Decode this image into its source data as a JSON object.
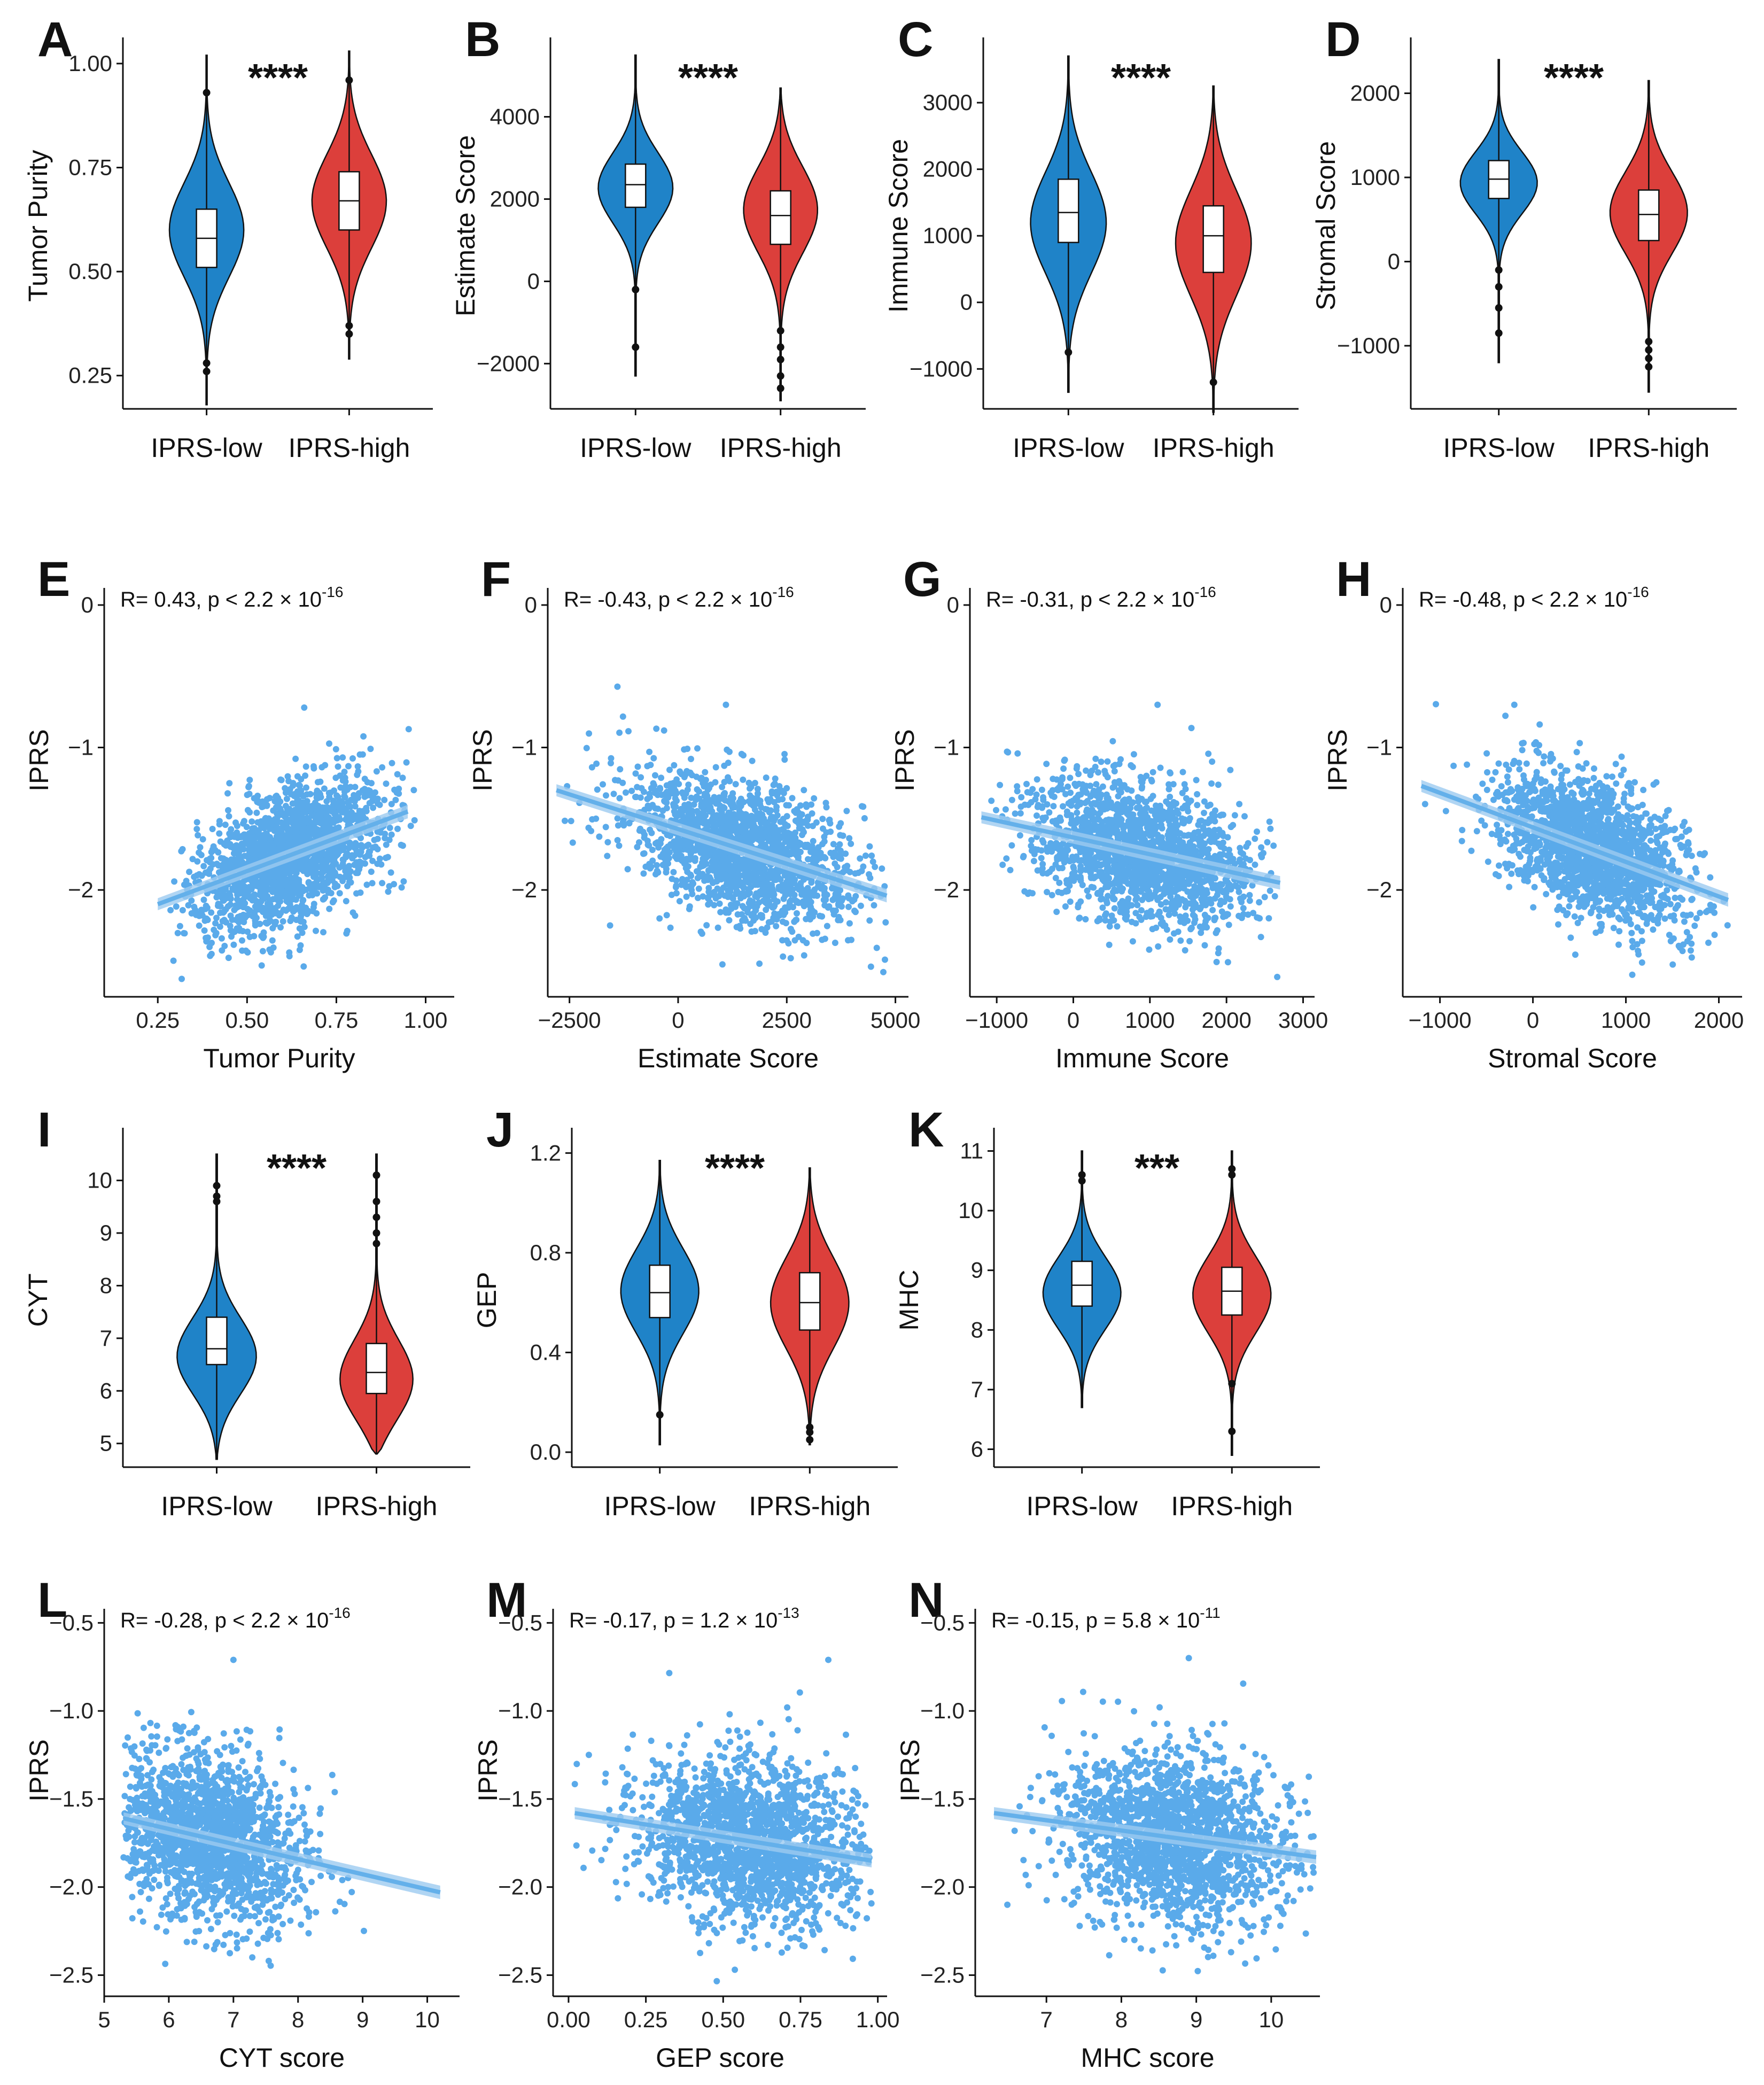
{
  "colors": {
    "low": "#1f83c8",
    "high": "#dc3f3b",
    "scatter": "#5aaaea",
    "line": "#64b0ea"
  },
  "groups": [
    "IPRS-low",
    "IPRS-high"
  ],
  "chart_data": [
    {
      "id": "A",
      "type": "violin",
      "title": "A",
      "significance": "****",
      "ylabel": "Tumor Purity",
      "categories": [
        "IPRS-low",
        "IPRS-high"
      ],
      "ylim": [
        0.17,
        1.05
      ],
      "yticks": [
        0.25,
        0.5,
        0.75,
        1.0
      ],
      "ytick_labels": [
        "0.25",
        "0.50",
        "0.75",
        "1.00"
      ],
      "series": [
        {
          "name": "IPRS-low",
          "min": 0.18,
          "q1": 0.51,
          "median": 0.58,
          "q3": 0.65,
          "max": 1.02,
          "mode": 0.6,
          "outliers": [
            0.93,
            0.28,
            0.26
          ]
        },
        {
          "name": "IPRS-high",
          "min": 0.29,
          "q1": 0.6,
          "median": 0.67,
          "q3": 0.74,
          "max": 1.03,
          "mode": 0.67,
          "outliers": [
            0.96,
            0.37,
            0.35
          ]
        }
      ]
    },
    {
      "id": "B",
      "type": "violin",
      "title": "B",
      "significance": "****",
      "ylabel": "Estimate Score",
      "categories": [
        "IPRS-low",
        "IPRS-high"
      ],
      "ylim": [
        -3100,
        5800
      ],
      "yticks": [
        -2000,
        0,
        2000,
        4000
      ],
      "ytick_labels": [
        "−2000",
        "0",
        "2000",
        "4000"
      ],
      "series": [
        {
          "name": "IPRS-low",
          "min": -2300,
          "q1": 1800,
          "median": 2350,
          "q3": 2850,
          "max": 5500,
          "mode": 2300,
          "outliers": [
            -200,
            -1600
          ]
        },
        {
          "name": "IPRS-high",
          "min": -2900,
          "q1": 900,
          "median": 1600,
          "q3": 2200,
          "max": 4700,
          "mode": 1800,
          "outliers": [
            -1200,
            -1600,
            -1900,
            -2300,
            -2600
          ]
        }
      ]
    },
    {
      "id": "C",
      "type": "violin",
      "title": "C",
      "significance": "****",
      "ylabel": "Immune Score",
      "categories": [
        "IPRS-low",
        "IPRS-high"
      ],
      "ylim": [
        -1600,
        3900
      ],
      "yticks": [
        -1000,
        0,
        1000,
        2000,
        3000
      ],
      "ytick_labels": [
        "−1000",
        "0",
        "1000",
        "2000",
        "3000"
      ],
      "series": [
        {
          "name": "IPRS-low",
          "min": -1350,
          "q1": 900,
          "median": 1350,
          "q3": 1850,
          "max": 3700,
          "mode": 1200,
          "outliers": [
            -750
          ]
        },
        {
          "name": "IPRS-high",
          "min": -1650,
          "q1": 450,
          "median": 1000,
          "q3": 1450,
          "max": 3250,
          "mode": 900,
          "outliers": [
            -1200
          ]
        }
      ]
    },
    {
      "id": "D",
      "type": "violin",
      "title": "D",
      "significance": "****",
      "ylabel": "Stromal Score",
      "categories": [
        "IPRS-low",
        "IPRS-high"
      ],
      "ylim": [
        -1750,
        2600
      ],
      "yticks": [
        -1000,
        0,
        1000,
        2000
      ],
      "ytick_labels": [
        "−1000",
        "0",
        "1000",
        "2000"
      ],
      "series": [
        {
          "name": "IPRS-low",
          "min": -1200,
          "q1": 750,
          "median": 980,
          "q3": 1200,
          "max": 2400,
          "mode": 950,
          "outliers": [
            -100,
            -300,
            -550,
            -850
          ]
        },
        {
          "name": "IPRS-high",
          "min": -1550,
          "q1": 250,
          "median": 560,
          "q3": 850,
          "max": 2150,
          "mode": 600,
          "outliers": [
            -950,
            -1050,
            -1150,
            -1250
          ]
        }
      ]
    },
    {
      "id": "E",
      "type": "scatter",
      "title": "E",
      "xlabel": "Tumor Purity",
      "ylabel": "IPRS",
      "stat": {
        "r": "R= 0.43, p < 2.2 × 10",
        "exp": "-16"
      },
      "xlim": [
        0.1,
        1.08
      ],
      "ylim": [
        -2.75,
        0.12
      ],
      "xticks": [
        0.25,
        0.5,
        0.75,
        1.0
      ],
      "xtick_labels": [
        "0.25",
        "0.50",
        "0.75",
        "1.00"
      ],
      "yticks": [
        -2,
        -1,
        0
      ],
      "ytick_labels": [
        "−2",
        "−1",
        "0"
      ],
      "x_range": [
        0.25,
        0.97
      ],
      "x_center": 0.62,
      "x_sd": 0.13,
      "y_sd": 0.24,
      "fit": {
        "x": [
          0.25,
          0.95
        ],
        "y": [
          -2.1,
          -1.45
        ]
      },
      "outlier": [
        0.66,
        -0.72
      ],
      "n": 1800
    },
    {
      "id": "F",
      "type": "scatter",
      "title": "F",
      "xlabel": "Estimate Score",
      "ylabel": "IPRS",
      "stat": {
        "r": "R= -0.43, p < 2.2 × 10",
        "exp": "-16"
      },
      "xlim": [
        -3000,
        5300
      ],
      "ylim": [
        -2.75,
        0.12
      ],
      "xticks": [
        -2500,
        0,
        2500,
        5000
      ],
      "xtick_labels": [
        "−2500",
        "0",
        "2500",
        "5000"
      ],
      "yticks": [
        -2,
        -1,
        0
      ],
      "ytick_labels": [
        "−2",
        "−1",
        "0"
      ],
      "x_range": [
        -2800,
        4800
      ],
      "x_center": 1500,
      "x_sd": 1300,
      "y_sd": 0.24,
      "fit": {
        "x": [
          -2800,
          4800
        ],
        "y": [
          -1.3,
          -2.04
        ]
      },
      "outlier": [
        1100,
        -0.7
      ],
      "n": 1800
    },
    {
      "id": "G",
      "type": "scatter",
      "title": "G",
      "xlabel": "Immune Score",
      "ylabel": "IPRS",
      "stat": {
        "r": "R= -0.31, p < 2.2 × 10",
        "exp": "-16"
      },
      "xlim": [
        -1350,
        3150
      ],
      "ylim": [
        -2.75,
        0.12
      ],
      "xticks": [
        -1000,
        0,
        1000,
        2000,
        3000
      ],
      "xtick_labels": [
        "−1000",
        "0",
        "1000",
        "2000",
        "3000"
      ],
      "yticks": [
        -2,
        -1,
        0
      ],
      "ytick_labels": [
        "−2",
        "−1",
        "0"
      ],
      "x_range": [
        -1200,
        2700
      ],
      "x_center": 900,
      "x_sd": 700,
      "y_sd": 0.24,
      "fit": {
        "x": [
          -1200,
          2700
        ],
        "y": [
          -1.49,
          -1.95
        ]
      },
      "outlier": [
        1100,
        -0.7
      ],
      "n": 1800
    },
    {
      "id": "H",
      "type": "scatter",
      "title": "H",
      "xlabel": "Stromal Score",
      "ylabel": "IPRS",
      "stat": {
        "r": "R= -0.48, p < 2.2 × 10",
        "exp": "-16"
      },
      "xlim": [
        -1400,
        2250
      ],
      "ylim": [
        -2.75,
        0.12
      ],
      "xticks": [
        -1000,
        0,
        1000,
        2000
      ],
      "xtick_labels": [
        "−1000",
        "0",
        "1000",
        "2000"
      ],
      "yticks": [
        -2,
        -1,
        0
      ],
      "ytick_labels": [
        "−2",
        "−1",
        "0"
      ],
      "x_range": [
        -1200,
        2100
      ],
      "x_center": 650,
      "x_sd": 520,
      "y_sd": 0.24,
      "fit": {
        "x": [
          -1200,
          2100
        ],
        "y": [
          -1.27,
          -2.07
        ]
      },
      "outlier": [
        -200,
        -0.7
      ],
      "n": 1800
    },
    {
      "id": "I",
      "type": "violin",
      "title": "I",
      "significance": "****",
      "ylabel": "CYT",
      "categories": [
        "IPRS-low",
        "IPRS-high"
      ],
      "ylim": [
        4.55,
        10.9
      ],
      "yticks": [
        5,
        6,
        7,
        8,
        9,
        10
      ],
      "ytick_labels": [
        "5",
        "6",
        "7",
        "8",
        "9",
        "10"
      ],
      "series": [
        {
          "name": "IPRS-low",
          "min": 4.7,
          "q1": 6.5,
          "median": 6.8,
          "q3": 7.4,
          "max": 10.5,
          "mode": 6.6,
          "outliers": [
            9.9,
            9.7,
            9.6
          ]
        },
        {
          "name": "IPRS-high",
          "min": 4.8,
          "q1": 5.95,
          "median": 6.35,
          "q3": 6.9,
          "max": 10.5,
          "mode": 6.1,
          "outliers": [
            10.1,
            9.6,
            9.3,
            9.0,
            8.8
          ]
        }
      ]
    },
    {
      "id": "J",
      "type": "violin",
      "title": "J",
      "significance": "****",
      "ylabel": "GEP",
      "categories": [
        "IPRS-low",
        "IPRS-high"
      ],
      "ylim": [
        -0.06,
        1.28
      ],
      "yticks": [
        0.0,
        0.4,
        0.8,
        1.2
      ],
      "ytick_labels": [
        "0.0",
        "0.4",
        "0.8",
        "1.2"
      ],
      "series": [
        {
          "name": "IPRS-low",
          "min": 0.03,
          "q1": 0.54,
          "median": 0.64,
          "q3": 0.75,
          "max": 1.17,
          "mode": 0.65,
          "outliers": [
            0.15
          ]
        },
        {
          "name": "IPRS-high",
          "min": 0.03,
          "q1": 0.49,
          "median": 0.6,
          "q3": 0.72,
          "max": 1.14,
          "mode": 0.6,
          "outliers": [
            0.1,
            0.08,
            0.05
          ]
        }
      ]
    },
    {
      "id": "K",
      "type": "violin",
      "title": "K",
      "significance": "***",
      "ylabel": "MHC",
      "categories": [
        "IPRS-low",
        "IPRS-high"
      ],
      "ylim": [
        5.7,
        11.3
      ],
      "yticks": [
        6,
        7,
        8,
        9,
        10,
        11
      ],
      "ytick_labels": [
        "6",
        "7",
        "8",
        "9",
        "10",
        "11"
      ],
      "series": [
        {
          "name": "IPRS-low",
          "min": 6.7,
          "q1": 8.4,
          "median": 8.75,
          "q3": 9.15,
          "max": 11.0,
          "mode": 8.6,
          "outliers": [
            10.5,
            10.6
          ]
        },
        {
          "name": "IPRS-high",
          "min": 5.9,
          "q1": 8.25,
          "median": 8.65,
          "q3": 9.05,
          "max": 11.0,
          "mode": 8.6,
          "outliers": [
            10.7,
            10.6,
            7.1,
            6.3
          ]
        }
      ]
    },
    {
      "id": "L",
      "type": "scatter",
      "title": "L",
      "xlabel": "CYT score",
      "ylabel": "IPRS",
      "stat": {
        "r": "R= -0.28, p < 2.2 × 10",
        "exp": "-16"
      },
      "xlim": [
        5.0,
        10.5
      ],
      "ylim": [
        -2.62,
        -0.42
      ],
      "xticks": [
        5,
        6,
        7,
        8,
        9,
        10
      ],
      "xtick_labels": [
        "5",
        "6",
        "7",
        "8",
        "9",
        "10"
      ],
      "yticks": [
        -2.5,
        -2.0,
        -1.5,
        -1.0,
        -0.5
      ],
      "ytick_labels": [
        "−2.5",
        "−2.0",
        "−1.5",
        "−1.0",
        "−0.5"
      ],
      "x_range": [
        5.3,
        10.2
      ],
      "x_center": 6.6,
      "x_sd": 0.75,
      "y_sd": 0.24,
      "fit": {
        "x": [
          5.3,
          10.2
        ],
        "y": [
          -1.61,
          -2.03
        ]
      },
      "outlier": [
        7.0,
        -0.71
      ],
      "n": 1800
    },
    {
      "id": "M",
      "type": "scatter",
      "title": "M",
      "xlabel": "GEP score",
      "ylabel": "IPRS",
      "stat": {
        "r": "R= -0.17, p = 1.2 × 10",
        "exp": "-13"
      },
      "xlim": [
        -0.05,
        1.03
      ],
      "ylim": [
        -2.62,
        -0.42
      ],
      "xticks": [
        0.0,
        0.25,
        0.5,
        0.75,
        1.0
      ],
      "xtick_labels": [
        "0.00",
        "0.25",
        "0.50",
        "0.75",
        "1.00"
      ],
      "yticks": [
        -2.5,
        -2.0,
        -1.5,
        -1.0,
        -0.5
      ],
      "ytick_labels": [
        "−2.5",
        "−2.0",
        "−1.5",
        "−1.0",
        "−0.5"
      ],
      "x_range": [
        0.02,
        0.98
      ],
      "x_center": 0.58,
      "x_sd": 0.18,
      "y_sd": 0.24,
      "fit": {
        "x": [
          0.02,
          0.98
        ],
        "y": [
          -1.58,
          -1.85
        ]
      },
      "outlier": [
        0.84,
        -0.71
      ],
      "n": 1800
    },
    {
      "id": "N",
      "type": "scatter",
      "title": "N",
      "xlabel": "MHC score",
      "ylabel": "IPRS",
      "stat": {
        "r": "R= -0.15, p = 5.8 × 10",
        "exp": "-11"
      },
      "xlim": [
        6.05,
        10.65
      ],
      "ylim": [
        -2.62,
        -0.42
      ],
      "xticks": [
        7,
        8,
        9,
        10
      ],
      "xtick_labels": [
        "7",
        "8",
        "9",
        "10"
      ],
      "yticks": [
        -2.5,
        -2.0,
        -1.5,
        -1.0,
        -0.5
      ],
      "ytick_labels": [
        "−2.5",
        "−2.0",
        "−1.5",
        "−1.0",
        "−0.5"
      ],
      "x_range": [
        6.3,
        10.6
      ],
      "x_center": 8.7,
      "x_sd": 0.75,
      "y_sd": 0.24,
      "fit": {
        "x": [
          6.3,
          10.6
        ],
        "y": [
          -1.58,
          -1.83
        ]
      },
      "outlier": [
        8.9,
        -0.7
      ],
      "n": 1800
    }
  ]
}
